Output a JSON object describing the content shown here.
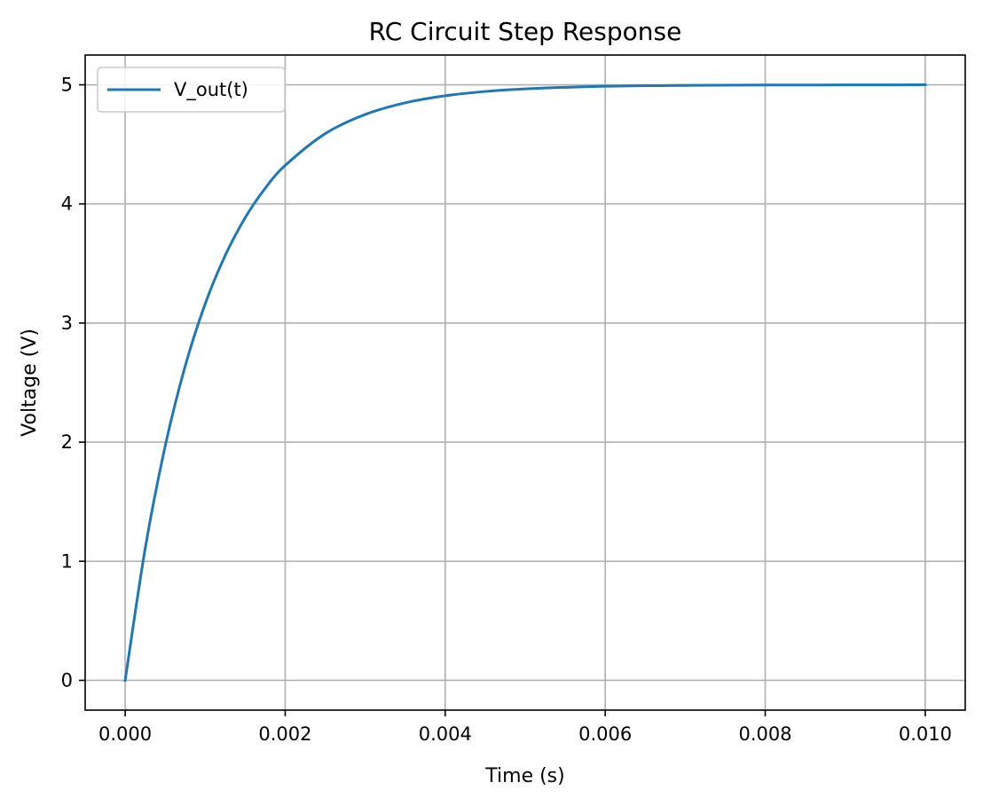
{
  "chart_data": {
    "type": "line",
    "title": "RC Circuit Step Response",
    "xlabel": "Time (s)",
    "ylabel": "Voltage (V)",
    "xlim": [
      -0.0005,
      0.0105
    ],
    "ylim": [
      -0.25,
      5.25
    ],
    "xticks": [
      0.0,
      0.002,
      0.004,
      0.006,
      0.008,
      0.01
    ],
    "xtick_labels": [
      "0.000",
      "0.002",
      "0.004",
      "0.006",
      "0.008",
      "0.010"
    ],
    "yticks": [
      0,
      1,
      2,
      3,
      4,
      5
    ],
    "ytick_labels": [
      "0",
      "1",
      "2",
      "3",
      "4",
      "5"
    ],
    "grid": true,
    "legend": {
      "location": "upper-left",
      "entries": [
        "V_out(t)"
      ]
    },
    "series": [
      {
        "name": "V_out(t)",
        "color": "#1f77b4",
        "x": [
          0.0,
          0.00025,
          0.0005,
          0.00075,
          0.001,
          0.00125,
          0.0015,
          0.00175,
          0.002,
          0.0025,
          0.003,
          0.0035,
          0.004,
          0.0045,
          0.005,
          0.006,
          0.007,
          0.008,
          0.009,
          0.01
        ],
        "y": [
          0.0,
          1.106,
          1.967,
          2.638,
          3.161,
          3.567,
          3.884,
          4.131,
          4.323,
          4.59,
          4.751,
          4.849,
          4.908,
          4.944,
          4.966,
          4.988,
          4.995,
          4.998,
          4.999,
          5.0
        ]
      }
    ]
  }
}
